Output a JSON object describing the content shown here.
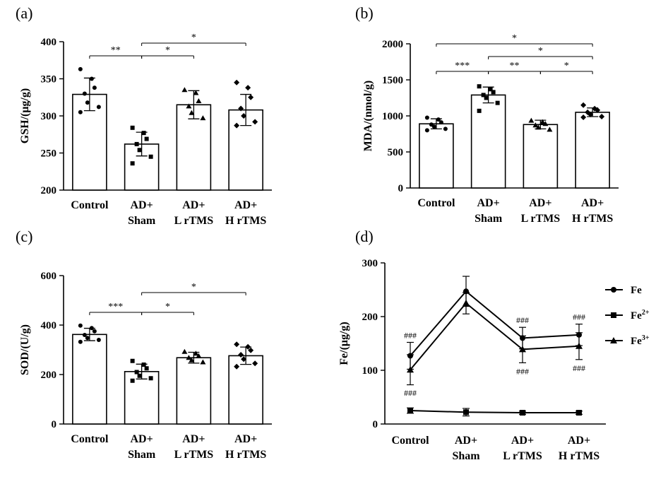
{
  "panels": {
    "a": "(a)",
    "b": "(b)",
    "c": "(c)",
    "d": "(d)"
  },
  "chart_data": [
    {
      "type": "bar",
      "ylabel": "GSH/(μg/g)",
      "ylim": [
        200,
        400
      ],
      "yticks": [
        200,
        250,
        300,
        350,
        400
      ],
      "categories": [
        "Control",
        "AD+\nSham",
        "AD+\nL rTMS",
        "AD+\nH rTMS"
      ],
      "values": [
        329,
        262,
        315,
        308
      ],
      "error": [
        22,
        16,
        19,
        21
      ],
      "points": [
        [
          363,
          350,
          338,
          330,
          318,
          312,
          305
        ],
        [
          284,
          277,
          269,
          262,
          254,
          245,
          236
        ],
        [
          335,
          331,
          320,
          313,
          304,
          297
        ],
        [
          345,
          338,
          325,
          310,
          300,
          292,
          287
        ]
      ],
      "significance": [
        {
          "from": 0,
          "to": 1,
          "label": "**"
        },
        {
          "from": 1,
          "to": 2,
          "label": "*"
        },
        {
          "from": 1,
          "to": 3,
          "label": "*"
        }
      ]
    },
    {
      "type": "bar",
      "ylabel": "MDA/(nmol/g)",
      "ylim": [
        0,
        2000
      ],
      "yticks": [
        0,
        500,
        1000,
        1500,
        2000
      ],
      "categories": [
        "Control",
        "AD+\nSham",
        "AD+\nL rTMS",
        "AD+\nH rTMS"
      ],
      "values": [
        890,
        1290,
        880,
        1050
      ],
      "error": [
        70,
        110,
        60,
        60
      ],
      "points": [
        [
          975,
          950,
          910,
          880,
          850,
          820,
          800
        ],
        [
          1410,
          1370,
          1330,
          1290,
          1250,
          1180,
          1070
        ],
        [
          935,
          915,
          890,
          870,
          840,
          810
        ],
        [
          1150,
          1100,
          1080,
          1050,
          1020,
          990,
          980
        ]
      ],
      "significance": [
        {
          "from": 0,
          "to": 1,
          "label": "***"
        },
        {
          "from": 1,
          "to": 2,
          "label": "**"
        },
        {
          "from": 2,
          "to": 3,
          "label": "*"
        },
        {
          "from": 1,
          "to": 3,
          "label": "*"
        },
        {
          "from": 0,
          "to": 3,
          "label": "*"
        }
      ]
    },
    {
      "type": "bar",
      "ylabel": "SOD/(U/g)",
      "ylim": [
        0,
        600
      ],
      "yticks": [
        0,
        200,
        400,
        600
      ],
      "categories": [
        "Control",
        "AD+\nSham",
        "AD+\nL rTMS",
        "AD+\nH rTMS"
      ],
      "values": [
        362,
        212,
        268,
        276
      ],
      "error": [
        25,
        30,
        22,
        35
      ],
      "points": [
        [
          398,
          388,
          375,
          360,
          348,
          340,
          332
        ],
        [
          255,
          240,
          225,
          210,
          195,
          185,
          175
        ],
        [
          292,
          285,
          275,
          268,
          258,
          250
        ],
        [
          322,
          312,
          298,
          280,
          262,
          245,
          232
        ]
      ],
      "significance": [
        {
          "from": 0,
          "to": 1,
          "label": "***"
        },
        {
          "from": 1,
          "to": 2,
          "label": "*"
        },
        {
          "from": 1,
          "to": 3,
          "label": "*"
        }
      ]
    },
    {
      "type": "line",
      "ylabel": "Fe/(μg/g)",
      "ylim": [
        0,
        300
      ],
      "yticks": [
        0,
        100,
        200,
        300
      ],
      "categories": [
        "Control",
        "AD+\nSham",
        "AD+\nL rTMS",
        "AD+\nH rTMS"
      ],
      "series": [
        {
          "name": "Fe",
          "marker": "circle",
          "values": [
            127,
            247,
            160,
            166
          ],
          "error": [
            25,
            28,
            20,
            20
          ]
        },
        {
          "name": "Fe2+",
          "marker": "square",
          "values": [
            25,
            22,
            21,
            21
          ],
          "error": [
            5,
            7,
            3,
            3
          ]
        },
        {
          "name": "Fe3+",
          "marker": "triangle",
          "values": [
            101,
            225,
            139,
            145
          ],
          "error": [
            28,
            20,
            25,
            25
          ]
        }
      ],
      "annotations": [
        {
          "category": 0,
          "label": "###",
          "anchor": "above-fe"
        },
        {
          "category": 0,
          "label": "###",
          "anchor": "below-fe3"
        },
        {
          "category": 2,
          "label": "###",
          "anchor": "above-fe"
        },
        {
          "category": 2,
          "label": "###",
          "anchor": "below-fe3"
        },
        {
          "category": 3,
          "label": "###",
          "anchor": "above-fe"
        },
        {
          "category": 3,
          "label": "###",
          "anchor": "below-fe3"
        }
      ]
    }
  ]
}
